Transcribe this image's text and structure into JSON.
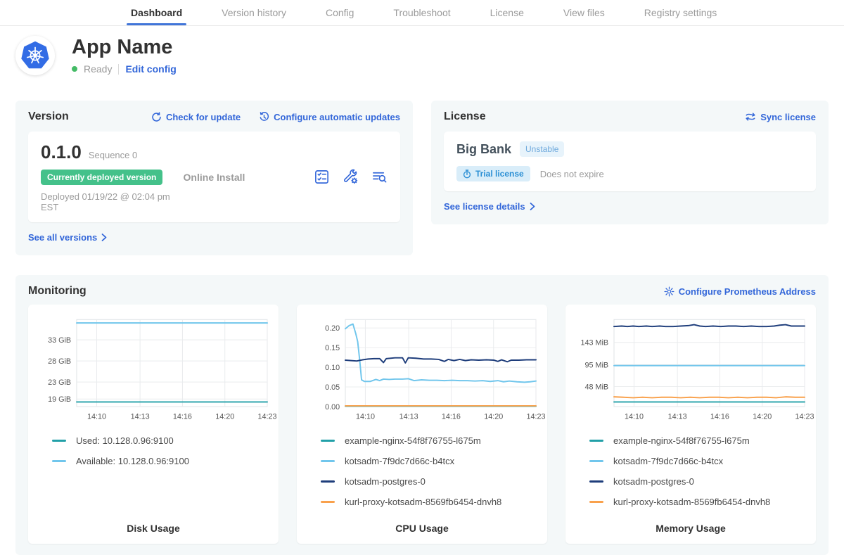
{
  "colors": {
    "link": "#3266d9",
    "accent_blue": "#4175d9",
    "teal": "#22a0a8",
    "light_blue": "#71c6ec",
    "navy": "#1e3d7b",
    "orange": "#f9a14c",
    "deployed_green": "#44c18a",
    "status_green": "#44bb66"
  },
  "nav": {
    "tabs": [
      {
        "label": "Dashboard",
        "active": true
      },
      {
        "label": "Version history"
      },
      {
        "label": "Config"
      },
      {
        "label": "Troubleshoot"
      },
      {
        "label": "License"
      },
      {
        "label": "View files"
      },
      {
        "label": "Registry settings"
      }
    ]
  },
  "header": {
    "app_name": "App Name",
    "status_label": "Ready",
    "edit_config_label": "Edit config"
  },
  "version": {
    "title": "Version",
    "check_update_label": "Check for update",
    "auto_updates_label": "Configure automatic updates",
    "version_number": "0.1.0",
    "sequence_label": "Sequence 0",
    "deployed_badge": "Currently deployed version",
    "deployed_at": "Deployed 01/19/22 @ 02:04 pm EST",
    "install_type": "Online Install",
    "see_all_label": "See all versions"
  },
  "license": {
    "title": "License",
    "sync_label": "Sync license",
    "customer_name": "Big Bank",
    "channel_badge": "Unstable",
    "type_badge": "Trial license",
    "expiry_text": "Does not expire",
    "details_label": "See license details"
  },
  "monitoring": {
    "title": "Monitoring",
    "configure_label": "Configure Prometheus Address"
  },
  "chart_data": [
    {
      "type": "line",
      "title": "Disk Usage",
      "x_ticks": [
        "14:10",
        "14:13",
        "14:16",
        "14:20",
        "14:23"
      ],
      "y_ticks": [
        {
          "label": "19 GiB",
          "value": 19
        },
        {
          "label": "23 GiB",
          "value": 23
        },
        {
          "label": "28 GiB",
          "value": 28
        },
        {
          "label": "33 GiB",
          "value": 33
        }
      ],
      "y_range": [
        17.2,
        37.8
      ],
      "grid": true,
      "legend_position": "below",
      "series": [
        {
          "name": "Used: 10.128.0.96:9100",
          "color": "teal",
          "points": [
            [
              0,
              18.3
            ],
            [
              1,
              18.3
            ]
          ]
        },
        {
          "name": "Available: 10.128.0.96:9100",
          "color": "light_blue",
          "points": [
            [
              0,
              37.0
            ],
            [
              1,
              37.0
            ]
          ]
        }
      ]
    },
    {
      "type": "line",
      "title": "CPU Usage",
      "x_ticks": [
        "14:10",
        "14:13",
        "14:16",
        "14:20",
        "14:23"
      ],
      "y_ticks": [
        {
          "label": "0.00",
          "value": 0
        },
        {
          "label": "0.05",
          "value": 0.05
        },
        {
          "label": "0.10",
          "value": 0.1
        },
        {
          "label": "0.15",
          "value": 0.15
        },
        {
          "label": "0.20",
          "value": 0.2
        }
      ],
      "y_range": [
        0,
        0.2214
      ],
      "grid": true,
      "legend_position": "below",
      "series": [
        {
          "name": "example-nginx-54f8f76755-l675m",
          "color": "teal",
          "points": [
            [
              0,
              0.001
            ],
            [
              1,
              0.001
            ]
          ]
        },
        {
          "name": "kotsadm-7f9dc7d66c-b4tcx",
          "color": "light_blue",
          "points": [
            [
              0,
              0.198
            ],
            [
              0.02,
              0.206
            ],
            [
              0.04,
              0.21
            ],
            [
              0.055,
              0.185
            ],
            [
              0.065,
              0.165
            ],
            [
              0.075,
              0.12
            ],
            [
              0.085,
              0.068
            ],
            [
              0.1,
              0.064
            ],
            [
              0.13,
              0.064
            ],
            [
              0.16,
              0.069
            ],
            [
              0.18,
              0.066
            ],
            [
              0.2,
              0.07
            ],
            [
              0.23,
              0.069
            ],
            [
              0.26,
              0.07
            ],
            [
              0.3,
              0.07
            ],
            [
              0.33,
              0.071
            ],
            [
              0.36,
              0.066
            ],
            [
              0.4,
              0.068
            ],
            [
              0.44,
              0.067
            ],
            [
              0.48,
              0.067
            ],
            [
              0.52,
              0.066
            ],
            [
              0.56,
              0.067
            ],
            [
              0.6,
              0.066
            ],
            [
              0.64,
              0.066
            ],
            [
              0.68,
              0.065
            ],
            [
              0.72,
              0.066
            ],
            [
              0.76,
              0.064
            ],
            [
              0.8,
              0.066
            ],
            [
              0.83,
              0.063
            ],
            [
              0.86,
              0.065
            ],
            [
              0.9,
              0.063
            ],
            [
              0.94,
              0.062
            ],
            [
              0.97,
              0.063
            ],
            [
              1,
              0.065
            ]
          ]
        },
        {
          "name": "kotsadm-postgres-0",
          "color": "navy",
          "points": [
            [
              0,
              0.118
            ],
            [
              0.03,
              0.117
            ],
            [
              0.06,
              0.116
            ],
            [
              0.09,
              0.119
            ],
            [
              0.12,
              0.121
            ],
            [
              0.15,
              0.122
            ],
            [
              0.18,
              0.122
            ],
            [
              0.2,
              0.112
            ],
            [
              0.215,
              0.122
            ],
            [
              0.26,
              0.124
            ],
            [
              0.3,
              0.124
            ],
            [
              0.315,
              0.111
            ],
            [
              0.33,
              0.124
            ],
            [
              0.37,
              0.123
            ],
            [
              0.41,
              0.121
            ],
            [
              0.45,
              0.121
            ],
            [
              0.49,
              0.12
            ],
            [
              0.52,
              0.115
            ],
            [
              0.54,
              0.12
            ],
            [
              0.57,
              0.117
            ],
            [
              0.6,
              0.12
            ],
            [
              0.63,
              0.117
            ],
            [
              0.66,
              0.119
            ],
            [
              0.7,
              0.118
            ],
            [
              0.74,
              0.119
            ],
            [
              0.78,
              0.118
            ],
            [
              0.8,
              0.115
            ],
            [
              0.82,
              0.119
            ],
            [
              0.85,
              0.114
            ],
            [
              0.87,
              0.118
            ],
            [
              0.91,
              0.118
            ],
            [
              0.95,
              0.119
            ],
            [
              1,
              0.119
            ]
          ]
        },
        {
          "name": "kurl-proxy-kotsadm-8569fb6454-dnvh8",
          "color": "orange",
          "points": [
            [
              0,
              0.002
            ],
            [
              1,
              0.002
            ]
          ]
        }
      ]
    },
    {
      "type": "line",
      "title": "Memory Usage",
      "x_ticks": [
        "14:10",
        "14:13",
        "14:16",
        "14:20",
        "14:23"
      ],
      "y_ticks": [
        {
          "label": "48 MiB",
          "value": 48
        },
        {
          "label": "95 MiB",
          "value": 95
        },
        {
          "label": "143 MiB",
          "value": 143
        }
      ],
      "y_range": [
        5,
        192
      ],
      "grid": true,
      "legend_position": "below",
      "series": [
        {
          "name": "example-nginx-54f8f76755-l675m",
          "color": "teal",
          "points": [
            [
              0,
              15
            ],
            [
              1,
              15
            ]
          ]
        },
        {
          "name": "kotsadm-7f9dc7d66c-b4tcx",
          "color": "light_blue",
          "points": [
            [
              0,
              93
            ],
            [
              1,
              93
            ]
          ]
        },
        {
          "name": "kotsadm-postgres-0",
          "color": "navy",
          "points": [
            [
              0,
              177
            ],
            [
              0.04,
              178
            ],
            [
              0.07,
              177
            ],
            [
              0.1,
              178
            ],
            [
              0.13,
              177
            ],
            [
              0.17,
              178
            ],
            [
              0.2,
              177
            ],
            [
              0.24,
              178
            ],
            [
              0.27,
              177
            ],
            [
              0.31,
              177
            ],
            [
              0.35,
              178
            ],
            [
              0.39,
              179
            ],
            [
              0.42,
              181
            ],
            [
              0.45,
              178
            ],
            [
              0.48,
              177
            ],
            [
              0.52,
              178
            ],
            [
              0.56,
              177
            ],
            [
              0.6,
              178
            ],
            [
              0.64,
              178
            ],
            [
              0.68,
              177
            ],
            [
              0.72,
              178
            ],
            [
              0.76,
              177
            ],
            [
              0.8,
              177
            ],
            [
              0.84,
              178
            ],
            [
              0.87,
              180
            ],
            [
              0.9,
              181
            ],
            [
              0.93,
              178
            ],
            [
              1,
              178
            ]
          ]
        },
        {
          "name": "kurl-proxy-kotsadm-8569fb6454-dnvh8",
          "color": "orange",
          "points": [
            [
              0,
              26
            ],
            [
              0.05,
              25
            ],
            [
              0.1,
              24
            ],
            [
              0.15,
              25
            ],
            [
              0.2,
              24
            ],
            [
              0.25,
              25
            ],
            [
              0.3,
              25
            ],
            [
              0.35,
              24
            ],
            [
              0.4,
              25
            ],
            [
              0.45,
              24
            ],
            [
              0.5,
              25
            ],
            [
              0.55,
              25
            ],
            [
              0.6,
              24
            ],
            [
              0.65,
              25
            ],
            [
              0.7,
              24
            ],
            [
              0.75,
              25
            ],
            [
              0.8,
              25
            ],
            [
              0.85,
              24
            ],
            [
              0.9,
              26
            ],
            [
              0.95,
              25
            ],
            [
              1,
              25
            ]
          ]
        }
      ]
    }
  ]
}
